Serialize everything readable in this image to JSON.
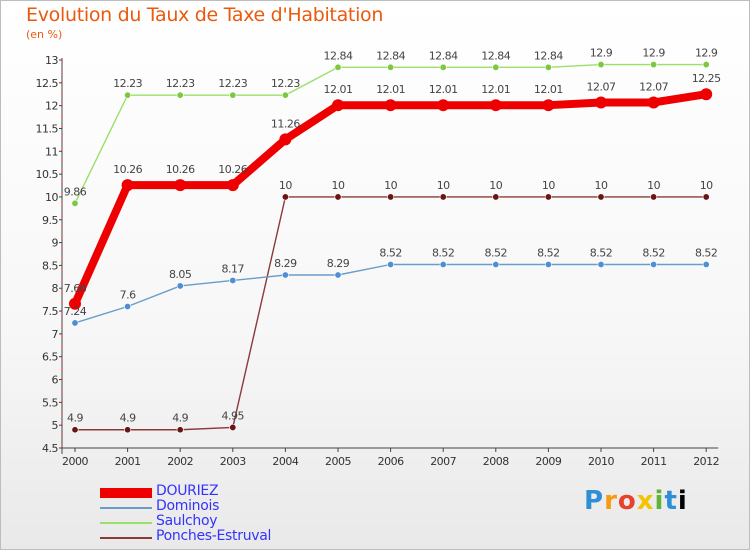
{
  "header": {
    "title": "Evolution du Taux de Taxe d'Habitation",
    "unit": "(en %)"
  },
  "brand": {
    "letters": [
      "P",
      "r",
      "o",
      "x",
      "i",
      "t",
      "i"
    ]
  },
  "chart_data": {
    "type": "line",
    "title": "Evolution du Taux de Taxe d'Habitation",
    "ylabel": "(en %)",
    "xlabel": "",
    "ylim": [
      4.5,
      13
    ],
    "ytick_step": 0.5,
    "y_ticks": [
      "4.5",
      "5",
      "5.5",
      "6",
      "6.5",
      "7",
      "7.5",
      "8",
      "8.5",
      "9",
      "9.5",
      "10",
      "10.5",
      "11",
      "11.5",
      "12",
      "12.5",
      "13"
    ],
    "categories": [
      "2000",
      "2001",
      "2002",
      "2003",
      "2004",
      "2005",
      "2006",
      "2007",
      "2008",
      "2009",
      "2010",
      "2011",
      "2012"
    ],
    "grid": false,
    "legend_position": "bottom-left",
    "series": [
      {
        "name": "DOURIEZ",
        "color": "#ee0000",
        "bold": true,
        "values": [
          7.66,
          10.26,
          10.26,
          10.26,
          11.26,
          12.01,
          12.01,
          12.01,
          12.01,
          12.01,
          12.07,
          12.07,
          12.25
        ],
        "labels": [
          "7.66",
          "10.26",
          "10.26",
          "10.26",
          "11.26",
          "12.01",
          "12.01",
          "12.01",
          "12.01",
          "12.01",
          "12.07",
          "12.07",
          "12.25"
        ]
      },
      {
        "name": "Dominois",
        "color": "#6a9cc9",
        "marker": "#4d8fd0",
        "values": [
          7.24,
          7.6,
          8.05,
          8.17,
          8.29,
          8.29,
          8.52,
          8.52,
          8.52,
          8.52,
          8.52,
          8.52,
          8.52
        ],
        "labels": [
          "7.24",
          "7.6",
          "8.05",
          "8.17",
          "8.29",
          "8.29",
          "8.52",
          "8.52",
          "8.52",
          "8.52",
          "8.52",
          "8.52",
          "8.52"
        ]
      },
      {
        "name": "Saulchoy",
        "color": "#99e06a",
        "marker": "#7cc840",
        "values": [
          9.86,
          12.23,
          12.23,
          12.23,
          12.23,
          12.84,
          12.84,
          12.84,
          12.84,
          12.84,
          12.9,
          12.9,
          12.9
        ],
        "labels": [
          "9.86",
          "12.23",
          "12.23",
          "12.23",
          "12.23",
          "12.84",
          "12.84",
          "12.84",
          "12.84",
          "12.84",
          "12.9",
          "12.9",
          "12.9"
        ]
      },
      {
        "name": "Ponches-Estruval",
        "color": "#8b3a3a",
        "marker": "#6b1414",
        "values": [
          4.9,
          4.9,
          4.9,
          4.95,
          10,
          10,
          10,
          10,
          10,
          10,
          10,
          10,
          10
        ],
        "labels": [
          "4.9",
          "4.9",
          "4.9",
          "4.95",
          "10",
          "10",
          "10",
          "10",
          "10",
          "10",
          "10",
          "10",
          "10"
        ]
      }
    ]
  }
}
